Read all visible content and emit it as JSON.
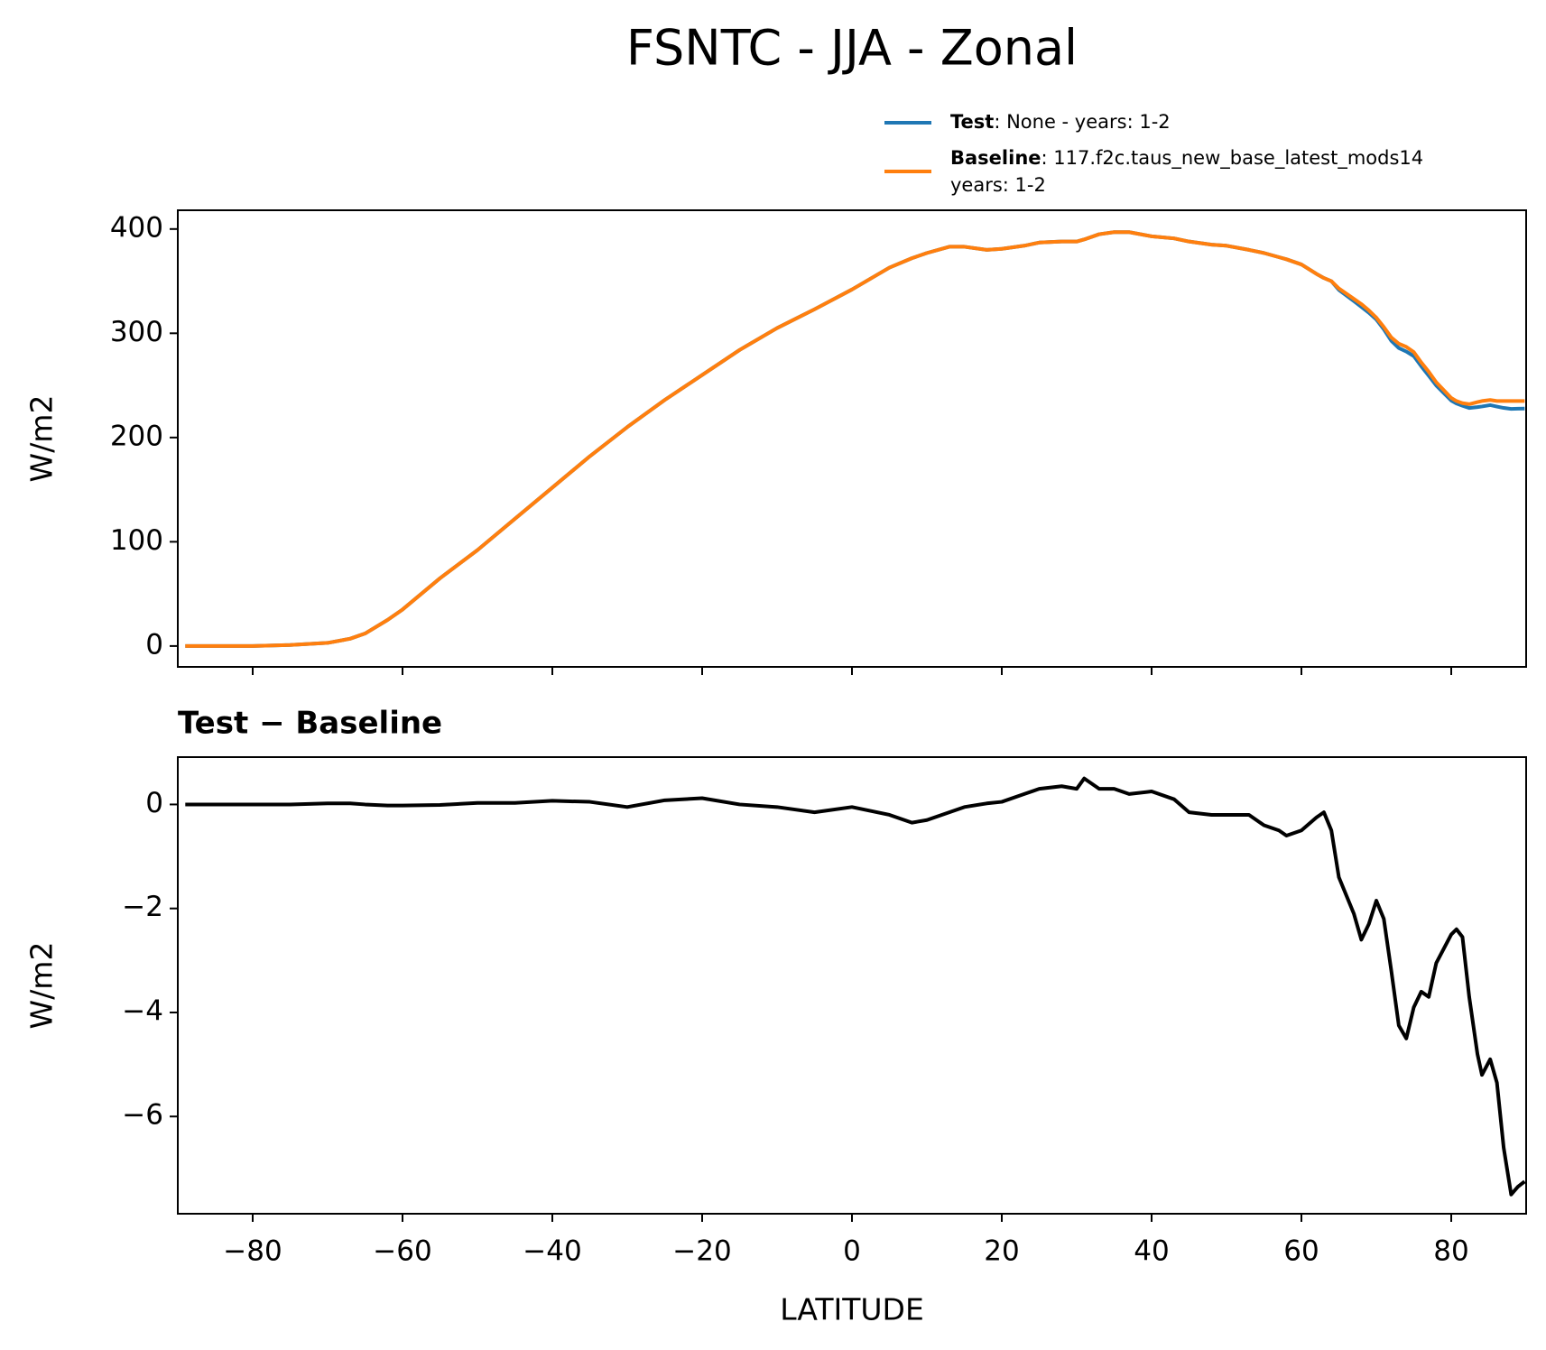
{
  "title": "FSNTC - JJA - Zonal",
  "chart_data": [
    {
      "type": "line",
      "ylabel": "W/m2",
      "x": [
        -89,
        -85,
        -80,
        -75,
        -70,
        -67,
        -65,
        -62,
        -60,
        -55,
        -50,
        -45,
        -40,
        -35,
        -30,
        -25,
        -20,
        -15,
        -10,
        -5,
        0,
        5,
        8,
        10,
        13,
        15,
        18,
        20,
        23,
        25,
        28,
        30,
        31,
        33,
        35,
        37,
        40,
        43,
        45,
        48,
        50,
        53,
        55,
        57,
        58,
        60,
        62,
        63,
        64,
        65,
        67,
        68,
        69,
        70,
        71,
        72,
        73,
        74,
        75,
        76,
        77,
        78,
        80,
        80.7,
        81.5,
        82.4,
        83.5,
        84.1,
        85.2,
        86.1,
        87,
        88,
        88.9,
        89.8
      ],
      "series": [
        {
          "name": "Test",
          "label": ": None - years: 1-2",
          "color": "#1f77b4",
          "values": [
            0,
            0,
            0,
            1,
            3,
            7,
            12,
            25,
            35,
            65,
            92,
            122,
            152,
            182,
            210,
            236,
            260,
            284,
            305,
            323,
            342,
            363,
            372,
            377,
            383,
            383,
            380,
            381,
            384,
            387,
            388,
            388,
            390,
            395,
            397,
            397,
            393,
            391,
            388,
            385,
            384,
            380,
            377,
            373,
            371,
            366,
            357,
            353,
            350,
            341.6,
            330.9,
            325.4,
            319.7,
            313.2,
            303.8,
            292.8,
            285.8,
            282.5,
            278.1,
            268.4,
            259.3,
            249.9,
            235.5,
            232.6,
            230.5,
            228.3,
            229.2,
            229.8,
            231.1,
            229.7,
            228.4,
            227.5,
            227.7,
            227.8
          ]
        },
        {
          "name": "Baseline",
          "label": [
            ": 117.f2c.taus_new_base_latest_mods14",
            "years: 1-2"
          ],
          "color": "#ff7f0e",
          "values": [
            0,
            0,
            0,
            1,
            3,
            7,
            12,
            25,
            35,
            65,
            92,
            122,
            152,
            182,
            210,
            236,
            260,
            284,
            305,
            323,
            342,
            363,
            372,
            377,
            383,
            383,
            380,
            381,
            384,
            387,
            388,
            388,
            390,
            395,
            397,
            397,
            393,
            391,
            388,
            385,
            384,
            380,
            377,
            373,
            371,
            366,
            357,
            353,
            350,
            343,
            333,
            328,
            322,
            315,
            306,
            296,
            290,
            287,
            282,
            272,
            263,
            253,
            238,
            235,
            233,
            232,
            234,
            235,
            236,
            235,
            235,
            235,
            235,
            235
          ]
        }
      ],
      "xlim": [
        -90,
        90
      ],
      "xticks": [
        -80,
        -60,
        -40,
        -20,
        0,
        20,
        40,
        60,
        80
      ],
      "ylim": [
        -20,
        418
      ],
      "yticks": [
        0,
        100,
        200,
        300,
        400
      ]
    },
    {
      "type": "line",
      "title": "Test − Baseline",
      "ylabel": "W/m2",
      "xlabel": "LATITUDE",
      "x": [
        -89,
        -85,
        -80,
        -75,
        -70,
        -67,
        -65,
        -62,
        -60,
        -55,
        -50,
        -45,
        -40,
        -35,
        -30,
        -25,
        -20,
        -15,
        -10,
        -5,
        0,
        5,
        8,
        10,
        13,
        15,
        18,
        20,
        23,
        25,
        28,
        30,
        31,
        33,
        35,
        37,
        40,
        43,
        45,
        48,
        50,
        53,
        55,
        57,
        58,
        60,
        62,
        63,
        64,
        65,
        67,
        68,
        69,
        70,
        71,
        72,
        73,
        74,
        75,
        76,
        77,
        78,
        80,
        80.7,
        81.5,
        82.4,
        83.5,
        84.1,
        85.2,
        86.1,
        87,
        88,
        88.9,
        89.8
      ],
      "series": [
        {
          "color": "#000000",
          "values": [
            0,
            0,
            0,
            0,
            0.02,
            0.02,
            0,
            -0.02,
            -0.02,
            -0.01,
            0.03,
            0.03,
            0.07,
            0.05,
            -0.05,
            0.08,
            0.12,
            0,
            -0.05,
            -0.15,
            -0.05,
            -0.2,
            -0.35,
            -0.3,
            -0.15,
            -0.05,
            0.02,
            0.05,
            0.2,
            0.3,
            0.35,
            0.3,
            0.5,
            0.3,
            0.3,
            0.2,
            0.25,
            0.1,
            -0.15,
            -0.2,
            -0.2,
            -0.2,
            -0.4,
            -0.5,
            -0.6,
            -0.5,
            -0.25,
            -0.15,
            -0.5,
            -1.4,
            -2.1,
            -2.6,
            -2.3,
            -1.85,
            -2.2,
            -3.2,
            -4.25,
            -4.5,
            -3.9,
            -3.6,
            -3.7,
            -3.05,
            -2.5,
            -2.4,
            -2.55,
            -3.7,
            -4.8,
            -5.2,
            -4.9,
            -5.35,
            -6.6,
            -7.5,
            -7.35,
            -7.25
          ]
        }
      ],
      "xlim": [
        -90,
        90
      ],
      "xticks": [
        {
          "value": -80,
          "label": "−80"
        },
        {
          "value": -60,
          "label": "−60"
        },
        {
          "value": -40,
          "label": "−40"
        },
        {
          "value": -20,
          "label": "−20"
        },
        0,
        20,
        40,
        60,
        80
      ],
      "ylim": [
        -7.87,
        0.91
      ],
      "yticks": [
        {
          "value": -6,
          "label": "−6"
        },
        {
          "value": -4,
          "label": "−4"
        },
        {
          "value": -2,
          "label": "−2"
        },
        0
      ]
    }
  ]
}
